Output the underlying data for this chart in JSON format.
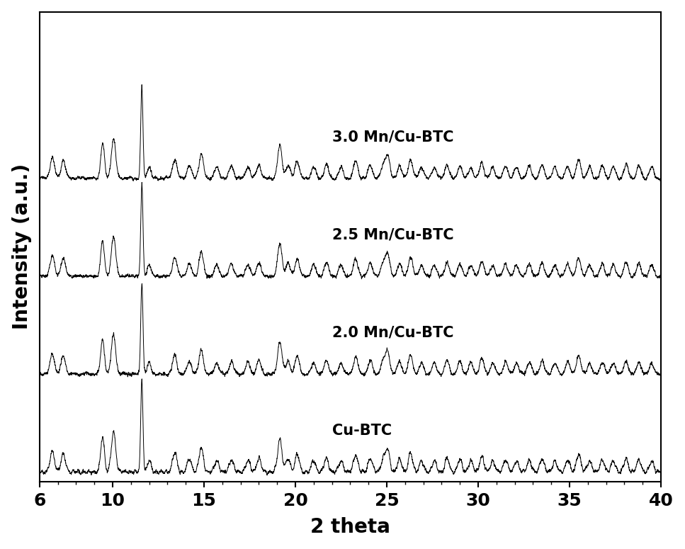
{
  "xlim": [
    6,
    40
  ],
  "xlabel": "2 theta",
  "ylabel": "Intensity (a.u.)",
  "xlabel_fontsize": 20,
  "ylabel_fontsize": 20,
  "tick_fontsize": 18,
  "background_color": "#ffffff",
  "line_color": "#000000",
  "labels": [
    "Cu-BTC",
    "2.0 Mn/Cu-BTC",
    "2.5 Mn/Cu-BTC",
    "3.0 Mn/Cu-BTC"
  ],
  "label_fontsize": 15,
  "peaks": [
    6.7,
    7.3,
    9.45,
    10.05,
    11.6,
    12.0,
    13.4,
    14.2,
    14.85,
    15.7,
    16.5,
    17.4,
    18.0,
    19.15,
    19.6,
    20.1,
    21.0,
    21.7,
    22.5,
    23.3,
    24.1,
    24.8,
    25.05,
    25.7,
    26.3,
    26.9,
    27.6,
    28.3,
    29.0,
    29.6,
    30.2,
    30.8,
    31.5,
    32.1,
    32.8,
    33.5,
    34.2,
    34.9,
    35.5,
    36.1,
    36.8,
    37.4,
    38.1,
    38.8,
    39.5
  ],
  "heights": [
    0.32,
    0.28,
    0.55,
    0.62,
    1.45,
    0.18,
    0.3,
    0.2,
    0.38,
    0.18,
    0.2,
    0.18,
    0.22,
    0.52,
    0.2,
    0.28,
    0.18,
    0.22,
    0.18,
    0.28,
    0.22,
    0.2,
    0.35,
    0.2,
    0.3,
    0.18,
    0.18,
    0.22,
    0.2,
    0.18,
    0.25,
    0.18,
    0.2,
    0.18,
    0.2,
    0.22,
    0.18,
    0.2,
    0.3,
    0.18,
    0.2,
    0.18,
    0.22,
    0.2,
    0.18
  ],
  "widths": [
    0.12,
    0.12,
    0.1,
    0.12,
    0.06,
    0.1,
    0.12,
    0.12,
    0.12,
    0.12,
    0.12,
    0.12,
    0.12,
    0.12,
    0.12,
    0.12,
    0.12,
    0.12,
    0.12,
    0.12,
    0.12,
    0.12,
    0.12,
    0.12,
    0.12,
    0.12,
    0.12,
    0.12,
    0.12,
    0.12,
    0.12,
    0.12,
    0.12,
    0.12,
    0.12,
    0.12,
    0.12,
    0.12,
    0.12,
    0.12,
    0.12,
    0.12,
    0.12,
    0.12,
    0.12
  ],
  "offsets": [
    0.0,
    0.85,
    1.7,
    2.55
  ],
  "noise_level": 0.018,
  "scale": 0.55
}
